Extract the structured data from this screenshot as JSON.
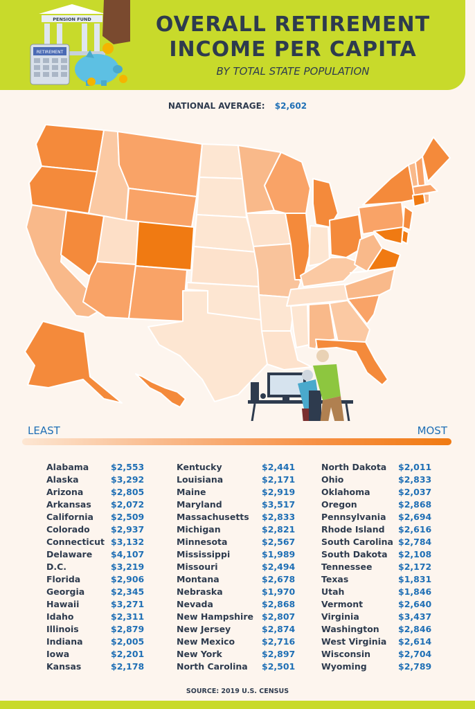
{
  "header": {
    "title_line1": "OVERALL RETIREMENT",
    "title_line2": "INCOME PER CAPITA",
    "subtitle": "BY TOTAL STATE POPULATION",
    "illustration_texts": {
      "bank_sign": "PENSION FUND",
      "calculator_screen": "RETIREMENT"
    }
  },
  "national_average": {
    "label": "NATIONAL AVERAGE:",
    "value": "$2,602"
  },
  "scale": {
    "least": "LEAST",
    "most": "MOST"
  },
  "source": "SOURCE: 2019 U.S. CENSUS",
  "colors": {
    "accent": "#c8da2b",
    "title": "#2e3b4e",
    "value_blue": "#1f6fb5",
    "scale_low": "#fde6d2",
    "scale_high": "#f07a12"
  },
  "icons": [
    "pension-fund-bank-icon",
    "calculator-icon",
    "piggy-bank-icon",
    "hand-with-coin-icon",
    "computer-desk-illustration"
  ],
  "states": [
    {
      "name": "Alabama",
      "value": "$2,553"
    },
    {
      "name": "Alaska",
      "value": "$3,292"
    },
    {
      "name": "Arizona",
      "value": "$2,805"
    },
    {
      "name": "Arkansas",
      "value": "$2,072"
    },
    {
      "name": "California",
      "value": "$2,509"
    },
    {
      "name": "Colorado",
      "value": "$2,937"
    },
    {
      "name": "Connecticut",
      "value": "$3,132"
    },
    {
      "name": "Delaware",
      "value": "$4,107"
    },
    {
      "name": "D.C.",
      "value": "$3,219"
    },
    {
      "name": "Florida",
      "value": "$2,906"
    },
    {
      "name": "Georgia",
      "value": "$2,345"
    },
    {
      "name": "Hawaii",
      "value": "$3,271"
    },
    {
      "name": "Idaho",
      "value": "$2,311"
    },
    {
      "name": "Illinois",
      "value": "$2,879"
    },
    {
      "name": "Indiana",
      "value": "$2,005"
    },
    {
      "name": "Iowa",
      "value": "$2,201"
    },
    {
      "name": "Kansas",
      "value": "$2,178"
    },
    {
      "name": "Kentucky",
      "value": "$2,441"
    },
    {
      "name": "Louisiana",
      "value": "$2,171"
    },
    {
      "name": "Maine",
      "value": "$2,919"
    },
    {
      "name": "Maryland",
      "value": "$3,517"
    },
    {
      "name": "Massachusetts",
      "value": "$2,833"
    },
    {
      "name": "Michigan",
      "value": "$2,821"
    },
    {
      "name": "Minnesota",
      "value": "$2,567"
    },
    {
      "name": "Mississippi",
      "value": "$1,989"
    },
    {
      "name": "Missouri",
      "value": "$2,494"
    },
    {
      "name": "Montana",
      "value": "$2,678"
    },
    {
      "name": "Nebraska",
      "value": "$1,970"
    },
    {
      "name": "Nevada",
      "value": "$2,868"
    },
    {
      "name": "New Hampshire",
      "value": "$2,807"
    },
    {
      "name": "New Jersey",
      "value": "$2,874"
    },
    {
      "name": "New Mexico",
      "value": "$2,716"
    },
    {
      "name": "New York",
      "value": "$2,897"
    },
    {
      "name": "North Carolina",
      "value": "$2,501"
    },
    {
      "name": "North Dakota",
      "value": "$2,011"
    },
    {
      "name": "Ohio",
      "value": "$2,833"
    },
    {
      "name": "Oklahoma",
      "value": "$2,037"
    },
    {
      "name": "Oregon",
      "value": "$2,868"
    },
    {
      "name": "Pennsylvania",
      "value": "$2,694"
    },
    {
      "name": "Rhode Island",
      "value": "$2,616"
    },
    {
      "name": "South Carolina",
      "value": "$2,784"
    },
    {
      "name": "South Dakota",
      "value": "$2,108"
    },
    {
      "name": "Tennessee",
      "value": "$2,172"
    },
    {
      "name": "Texas",
      "value": "$1,831"
    },
    {
      "name": "Utah",
      "value": "$1,846"
    },
    {
      "name": "Vermont",
      "value": "$2,640"
    },
    {
      "name": "Virginia",
      "value": "$3,437"
    },
    {
      "name": "Washington",
      "value": "$2,846"
    },
    {
      "name": "West Virginia",
      "value": "$2,614"
    },
    {
      "name": "Wisconsin",
      "value": "$2,704"
    },
    {
      "name": "Wyoming",
      "value": "$2,789"
    }
  ]
}
